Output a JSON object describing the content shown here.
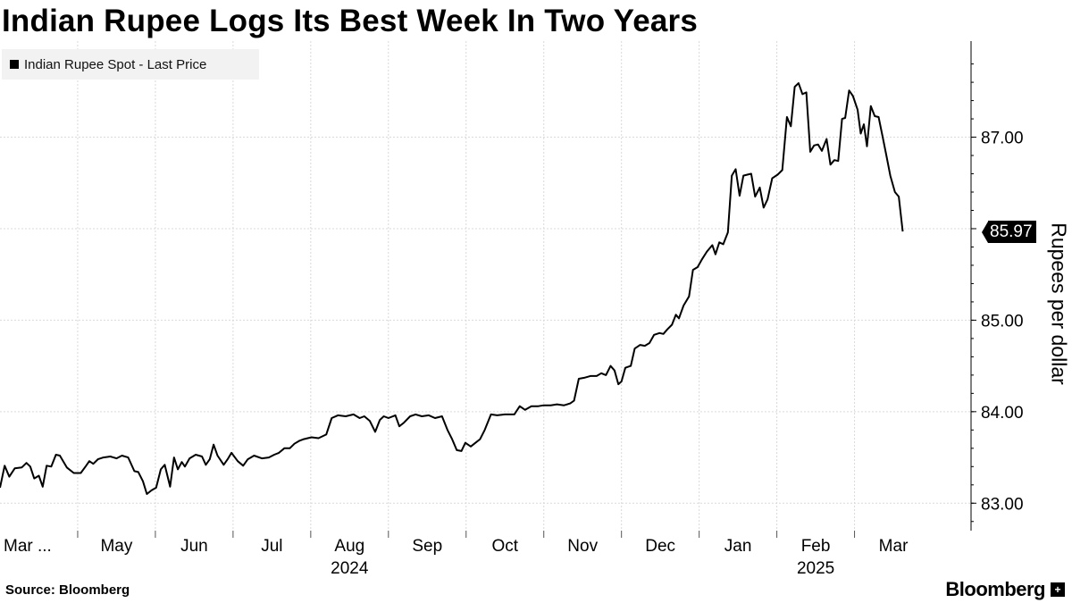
{
  "title": "Indian Rupee Logs Its Best Week In Two Years",
  "legend": {
    "label": "Indian Rupee Spot - Last Price"
  },
  "source": "Source: Bloomberg",
  "brand": {
    "name": "Bloomberg",
    "icon": "bloomberg-terminal-icon"
  },
  "colors": {
    "line": "#000000",
    "grid": "#d9d9d9",
    "legend_bg": "#f2f2f2",
    "axis": "#000000"
  },
  "chart_data": {
    "type": "line",
    "title": "Indian Rupee Logs Its Best Week In Two Years",
    "ylabel": "Rupees per dollar",
    "xlabel": "",
    "ylim": [
      82.7,
      88.05
    ],
    "yticks": [
      83.0,
      84.0,
      85.0,
      86.0,
      87.0
    ],
    "ytick_labels": [
      "83.00",
      "84.00",
      "85.00",
      "",
      "87.00"
    ],
    "xlim": [
      0,
      12.5
    ],
    "xticks": [
      {
        "pos": 0,
        "label": "Mar ...",
        "sub": ""
      },
      {
        "pos": 1.5,
        "label": "May",
        "sub": ""
      },
      {
        "pos": 2.5,
        "label": "Jun",
        "sub": ""
      },
      {
        "pos": 3.5,
        "label": "Jul",
        "sub": ""
      },
      {
        "pos": 4.5,
        "label": "Aug",
        "sub": "2024"
      },
      {
        "pos": 5.5,
        "label": "Sep",
        "sub": ""
      },
      {
        "pos": 6.5,
        "label": "Oct",
        "sub": ""
      },
      {
        "pos": 7.5,
        "label": "Nov",
        "sub": ""
      },
      {
        "pos": 8.5,
        "label": "Dec",
        "sub": ""
      },
      {
        "pos": 9.5,
        "label": "Jan",
        "sub": ""
      },
      {
        "pos": 10.5,
        "label": "Feb",
        "sub": "2025"
      },
      {
        "pos": 11.5,
        "label": "Mar",
        "sub": ""
      }
    ],
    "grid": true,
    "legend_position": "top-left",
    "last_value": "85.97",
    "series": [
      {
        "name": "Indian Rupee Spot - Last Price",
        "points": [
          [
            0.0,
            83.17
          ],
          [
            0.06,
            83.41
          ],
          [
            0.12,
            83.29
          ],
          [
            0.19,
            83.38
          ],
          [
            0.28,
            83.39
          ],
          [
            0.34,
            83.44
          ],
          [
            0.39,
            83.4
          ],
          [
            0.44,
            83.27
          ],
          [
            0.5,
            83.3
          ],
          [
            0.55,
            83.18
          ],
          [
            0.6,
            83.41
          ],
          [
            0.66,
            83.4
          ],
          [
            0.72,
            83.53
          ],
          [
            0.77,
            83.52
          ],
          [
            0.86,
            83.39
          ],
          [
            0.95,
            83.33
          ],
          [
            1.04,
            83.33
          ],
          [
            1.1,
            83.4
          ],
          [
            1.15,
            83.46
          ],
          [
            1.2,
            83.43
          ],
          [
            1.26,
            83.48
          ],
          [
            1.33,
            83.5
          ],
          [
            1.42,
            83.51
          ],
          [
            1.5,
            83.49
          ],
          [
            1.57,
            83.52
          ],
          [
            1.65,
            83.5
          ],
          [
            1.73,
            83.35
          ],
          [
            1.78,
            83.34
          ],
          [
            1.84,
            83.24
          ],
          [
            1.89,
            83.1
          ],
          [
            1.95,
            83.14
          ],
          [
            2.01,
            83.17
          ],
          [
            2.07,
            83.37
          ],
          [
            2.12,
            83.42
          ],
          [
            2.19,
            83.18
          ],
          [
            2.24,
            83.5
          ],
          [
            2.29,
            83.37
          ],
          [
            2.34,
            83.45
          ],
          [
            2.38,
            83.4
          ],
          [
            2.44,
            83.49
          ],
          [
            2.52,
            83.53
          ],
          [
            2.6,
            83.51
          ],
          [
            2.65,
            83.42
          ],
          [
            2.7,
            83.48
          ],
          [
            2.75,
            83.64
          ],
          [
            2.8,
            83.52
          ],
          [
            2.88,
            83.42
          ],
          [
            2.93,
            83.48
          ],
          [
            2.98,
            83.55
          ],
          [
            3.06,
            83.46
          ],
          [
            3.13,
            83.41
          ],
          [
            3.19,
            83.48
          ],
          [
            3.27,
            83.52
          ],
          [
            3.37,
            83.49
          ],
          [
            3.46,
            83.5
          ],
          [
            3.53,
            83.53
          ],
          [
            3.59,
            83.55
          ],
          [
            3.66,
            83.6
          ],
          [
            3.73,
            83.6
          ],
          [
            3.79,
            83.65
          ],
          [
            3.85,
            83.68
          ],
          [
            3.91,
            83.7
          ],
          [
            4.01,
            83.72
          ],
          [
            4.1,
            83.71
          ],
          [
            4.2,
            83.75
          ],
          [
            4.27,
            83.93
          ],
          [
            4.35,
            83.96
          ],
          [
            4.45,
            83.95
          ],
          [
            4.55,
            83.97
          ],
          [
            4.63,
            83.93
          ],
          [
            4.69,
            83.95
          ],
          [
            4.76,
            83.9
          ],
          [
            4.83,
            83.78
          ],
          [
            4.89,
            83.91
          ],
          [
            4.94,
            83.95
          ],
          [
            5.0,
            83.93
          ],
          [
            5.09,
            83.96
          ],
          [
            5.14,
            83.84
          ],
          [
            5.2,
            83.88
          ],
          [
            5.28,
            83.95
          ],
          [
            5.35,
            83.97
          ],
          [
            5.43,
            83.95
          ],
          [
            5.52,
            83.96
          ],
          [
            5.6,
            83.93
          ],
          [
            5.69,
            83.95
          ],
          [
            5.76,
            83.8
          ],
          [
            5.82,
            83.7
          ],
          [
            5.88,
            83.58
          ],
          [
            5.94,
            83.57
          ],
          [
            5.99,
            83.66
          ],
          [
            6.06,
            83.62
          ],
          [
            6.12,
            83.66
          ],
          [
            6.18,
            83.7
          ],
          [
            6.24,
            83.8
          ],
          [
            6.32,
            83.97
          ],
          [
            6.4,
            83.96
          ],
          [
            6.5,
            83.97
          ],
          [
            6.62,
            83.97
          ],
          [
            6.69,
            84.06
          ],
          [
            6.76,
            84.02
          ],
          [
            6.84,
            84.06
          ],
          [
            6.93,
            84.06
          ],
          [
            7.0,
            84.07
          ],
          [
            7.09,
            84.07
          ],
          [
            7.17,
            84.08
          ],
          [
            7.26,
            84.07
          ],
          [
            7.34,
            84.09
          ],
          [
            7.39,
            84.12
          ],
          [
            7.45,
            84.36
          ],
          [
            7.52,
            84.37
          ],
          [
            7.6,
            84.39
          ],
          [
            7.68,
            84.39
          ],
          [
            7.74,
            84.42
          ],
          [
            7.8,
            84.4
          ],
          [
            7.86,
            84.5
          ],
          [
            7.91,
            84.45
          ],
          [
            7.96,
            84.3
          ],
          [
            8.0,
            84.33
          ],
          [
            8.05,
            84.48
          ],
          [
            8.12,
            84.5
          ],
          [
            8.17,
            84.69
          ],
          [
            8.24,
            84.73
          ],
          [
            8.3,
            84.72
          ],
          [
            8.36,
            84.75
          ],
          [
            8.42,
            84.84
          ],
          [
            8.49,
            84.86
          ],
          [
            8.54,
            84.85
          ],
          [
            8.59,
            84.9
          ],
          [
            8.65,
            84.95
          ],
          [
            8.7,
            85.06
          ],
          [
            8.74,
            85.02
          ],
          [
            8.8,
            85.16
          ],
          [
            8.87,
            85.26
          ],
          [
            8.92,
            85.55
          ],
          [
            8.98,
            85.58
          ],
          [
            9.04,
            85.67
          ],
          [
            9.1,
            85.75
          ],
          [
            9.17,
            85.82
          ],
          [
            9.21,
            85.72
          ],
          [
            9.26,
            85.85
          ],
          [
            9.31,
            85.83
          ],
          [
            9.37,
            85.96
          ],
          [
            9.42,
            86.58
          ],
          [
            9.47,
            86.65
          ],
          [
            9.52,
            86.36
          ],
          [
            9.57,
            86.58
          ],
          [
            9.62,
            86.59
          ],
          [
            9.67,
            86.6
          ],
          [
            9.72,
            86.35
          ],
          [
            9.78,
            86.45
          ],
          [
            9.83,
            86.23
          ],
          [
            9.88,
            86.32
          ],
          [
            9.94,
            86.55
          ],
          [
            10.01,
            86.59
          ],
          [
            10.07,
            86.64
          ],
          [
            10.13,
            87.22
          ],
          [
            10.18,
            87.12
          ],
          [
            10.23,
            87.55
          ],
          [
            10.28,
            87.59
          ],
          [
            10.33,
            87.47
          ],
          [
            10.38,
            87.49
          ],
          [
            10.43,
            86.84
          ],
          [
            10.48,
            86.91
          ],
          [
            10.53,
            86.92
          ],
          [
            10.58,
            86.85
          ],
          [
            10.64,
            86.98
          ],
          [
            10.69,
            86.7
          ],
          [
            10.74,
            86.75
          ],
          [
            10.79,
            86.74
          ],
          [
            10.84,
            87.2
          ],
          [
            10.88,
            87.21
          ],
          [
            10.93,
            87.51
          ],
          [
            10.98,
            87.45
          ],
          [
            11.04,
            87.3
          ],
          [
            11.08,
            87.04
          ],
          [
            11.12,
            87.14
          ],
          [
            11.16,
            86.9
          ],
          [
            11.21,
            87.34
          ],
          [
            11.26,
            87.23
          ],
          [
            11.31,
            87.22
          ],
          [
            11.36,
            87.01
          ],
          [
            11.41,
            86.8
          ],
          [
            11.46,
            86.58
          ],
          [
            11.52,
            86.4
          ],
          [
            11.57,
            86.35
          ],
          [
            11.62,
            85.97
          ]
        ]
      }
    ]
  }
}
